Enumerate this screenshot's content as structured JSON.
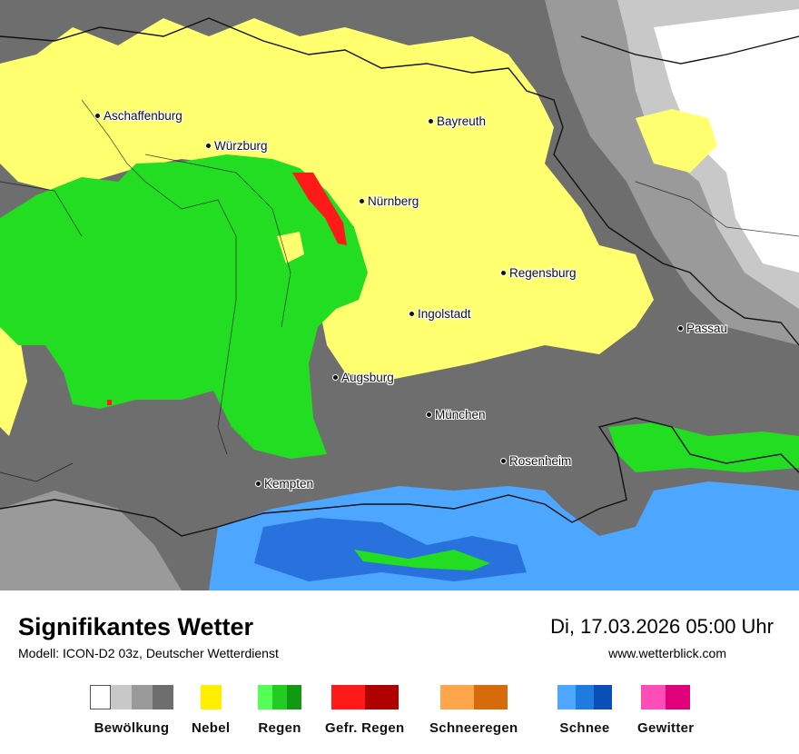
{
  "map": {
    "cities": [
      {
        "id": "aschaffenburg",
        "name": "Aschaffenburg"
      },
      {
        "id": "wuerzburg",
        "name": "Würzburg"
      },
      {
        "id": "bayreuth",
        "name": "Bayreuth"
      },
      {
        "id": "nuernberg",
        "name": "Nürnberg"
      },
      {
        "id": "regensburg",
        "name": "Regensburg"
      },
      {
        "id": "ingolstadt",
        "name": "Ingolstadt"
      },
      {
        "id": "passau",
        "name": "Passau"
      },
      {
        "id": "augsburg",
        "name": "Augsburg"
      },
      {
        "id": "muenchen",
        "name": "München"
      },
      {
        "id": "rosenheim",
        "name": "Rosenheim"
      },
      {
        "id": "kempten",
        "name": "Kempten"
      }
    ],
    "colors": {
      "cloud_dark": "#6e6e6e",
      "cloud_mid": "#9a9a9a",
      "cloud_light": "#c8c8c8",
      "fog": "#ffff70",
      "rain": "#22dd22",
      "rain_light": "#66ee66",
      "freezing_rain": "#ff1a1a",
      "snow": "#4da6ff",
      "snow_dark": "#1e5fd0"
    }
  },
  "footer": {
    "title": "Signifikantes Wetter",
    "model": "Modell: ICON-D2 03z, Deutscher Wetterdienst",
    "datetime": "Di, 17.03.2026 05:00 Uhr",
    "website": "www.wetterblick.com"
  },
  "legend": [
    {
      "label": "Bewölkung",
      "colors": [
        "#ffffff",
        "#c8c8c8",
        "#9a9a9a",
        "#6e6e6e"
      ]
    },
    {
      "label": "Nebel",
      "colors": [
        "#ffee00"
      ]
    },
    {
      "label": "Regen",
      "colors": [
        "#55ff55",
        "#22cc22",
        "#119911"
      ]
    },
    {
      "label": "Gefr. Regen",
      "colors": [
        "#ff1a1a",
        "#b00000"
      ]
    },
    {
      "label": "Schneeregen",
      "colors": [
        "#ffa64d",
        "#d56b0a"
      ]
    },
    {
      "label": "Schnee",
      "colors": [
        "#4da6ff",
        "#1e7be0",
        "#0a4fb5"
      ]
    },
    {
      "label": "Gewitter",
      "colors": [
        "#ff4db8",
        "#e0007a"
      ]
    }
  ]
}
